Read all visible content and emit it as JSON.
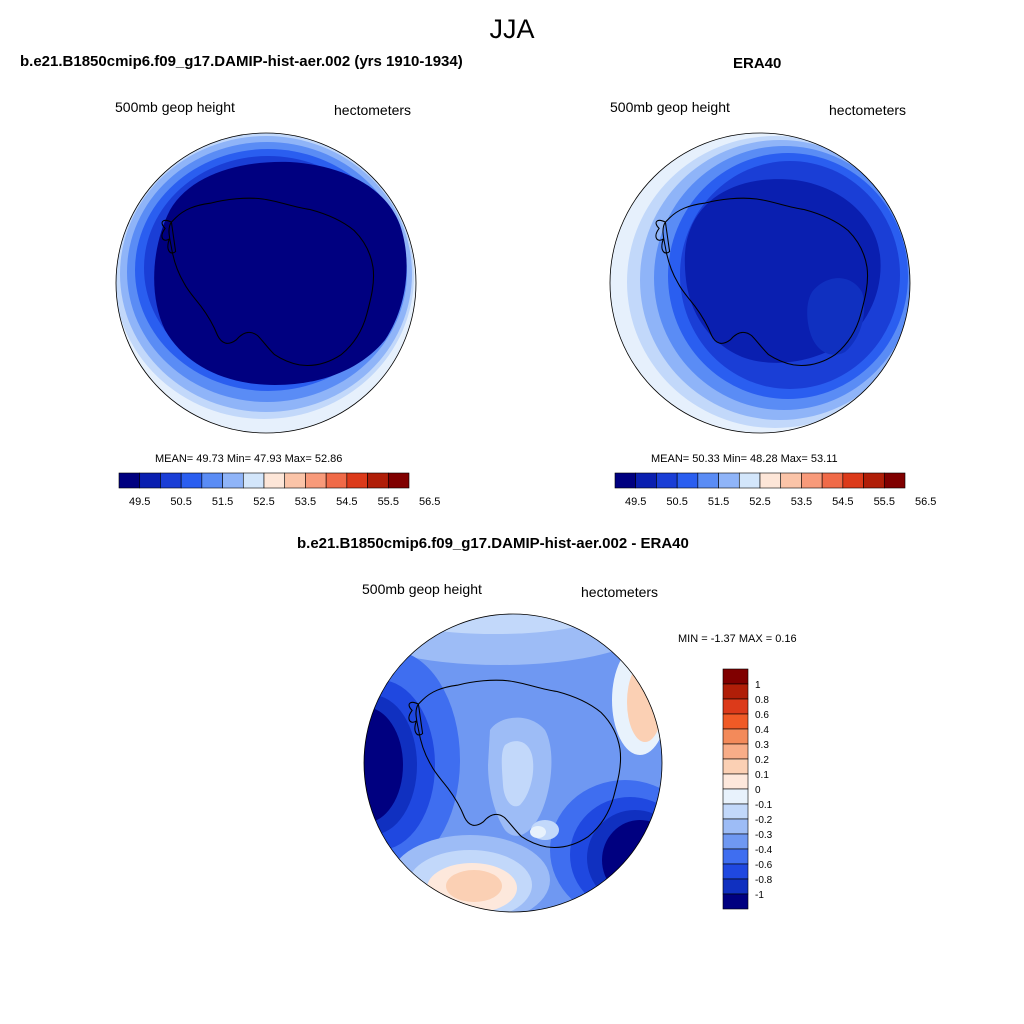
{
  "title": "JJA",
  "panels": {
    "model": {
      "title": "b.e21.B1850cmip6.f09_g17.DAMIP-hist-aer.002 (yrs 1910-1934)",
      "left_label": "500mb geop height",
      "right_label": "hectometers",
      "stats": "MEAN=  49.73  Min=  47.93  Max=  52.86"
    },
    "obs": {
      "title": "ERA40",
      "left_label": "500mb geop height",
      "right_label": "hectometers",
      "stats": "MEAN=  50.33  Min=  48.28  Max=  53.11"
    },
    "diff": {
      "title": "b.e21.B1850cmip6.f09_g17.DAMIP-hist-aer.002 - ERA40",
      "left_label": "500mb geop height",
      "right_label": "hectometers",
      "stats": "MIN =  -1.37 MAX =   0.16"
    }
  },
  "colorbar_abs": {
    "colors": [
      "#000080",
      "#0a1fb0",
      "#1a3ed6",
      "#2a5ef0",
      "#5a8cf5",
      "#8fb4f8",
      "#d3e6fb",
      "#fde6d8",
      "#fbc4a8",
      "#f89a7a",
      "#f06a48",
      "#dc3a1a",
      "#b01e08",
      "#800000"
    ],
    "labels": [
      "49.5",
      "50.5",
      "51.5",
      "52.5",
      "53.5",
      "54.5",
      "55.5",
      "56.5"
    ]
  },
  "colorbar_diff": {
    "colors": [
      "#800000",
      "#b01e08",
      "#dc3a1a",
      "#f05a26",
      "#f38a5a",
      "#f8ad88",
      "#fbd0b4",
      "#fde8dc",
      "#e8f2fc",
      "#c2d8fa",
      "#9dbcf6",
      "#6f98f2",
      "#3f6ef0",
      "#1f48e0",
      "#1030c0",
      "#000080"
    ],
    "labels": [
      "1",
      "0.8",
      "0.6",
      "0.4",
      "0.3",
      "0.2",
      "0.1",
      "0",
      "-0.1",
      "-0.2",
      "-0.3",
      "-0.4",
      "-0.6",
      "-0.8",
      "-1"
    ]
  }
}
